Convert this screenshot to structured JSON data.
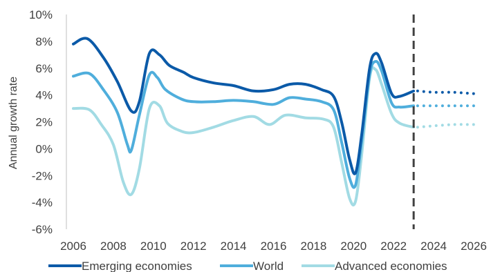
{
  "chart_data": {
    "type": "line",
    "title": "",
    "xlabel": "",
    "ylabel": "Annual growth rate",
    "xlim": [
      2006,
      2026
    ],
    "ylim": [
      -6,
      10
    ],
    "x_ticks": [
      2006,
      2008,
      2010,
      2012,
      2014,
      2016,
      2018,
      2020,
      2022,
      2024,
      2026
    ],
    "y_ticks": [
      -6,
      -4,
      -2,
      0,
      2,
      4,
      6,
      8,
      10
    ],
    "y_tick_labels": [
      "-6%",
      "-4%",
      "-2%",
      "0%",
      "2%",
      "4%",
      "6%",
      "8%",
      "10%"
    ],
    "grid": false,
    "legend_position": "bottom",
    "forecast_start": 2023,
    "forecast_marker": "vertical dashed line",
    "series": [
      {
        "name": "Emerging economies",
        "color": "#0b5aa8",
        "points": [
          [
            2006,
            7.8
          ],
          [
            2006.7,
            8.2
          ],
          [
            2007.5,
            6.8
          ],
          [
            2008.2,
            5.0
          ],
          [
            2008.9,
            2.8
          ],
          [
            2009.3,
            3.5
          ],
          [
            2009.8,
            7.1
          ],
          [
            2010.3,
            7.0
          ],
          [
            2010.8,
            6.2
          ],
          [
            2011.5,
            5.7
          ],
          [
            2012,
            5.3
          ],
          [
            2013,
            4.9
          ],
          [
            2014,
            4.7
          ],
          [
            2015,
            4.3
          ],
          [
            2016,
            4.4
          ],
          [
            2016.8,
            4.8
          ],
          [
            2017.6,
            4.8
          ],
          [
            2018.4,
            4.4
          ],
          [
            2019,
            3.9
          ],
          [
            2019.4,
            2.0
          ],
          [
            2019.8,
            -0.8
          ],
          [
            2020.1,
            -1.8
          ],
          [
            2020.4,
            1.0
          ],
          [
            2020.8,
            6.0
          ],
          [
            2021.1,
            7.1
          ],
          [
            2021.4,
            6.4
          ],
          [
            2021.9,
            4.1
          ],
          [
            2022.3,
            3.9
          ],
          [
            2023,
            4.3
          ]
        ],
        "forecast_points": [
          [
            2023.2,
            4.3
          ],
          [
            2024,
            4.2
          ],
          [
            2025,
            4.2
          ],
          [
            2026,
            4.1
          ]
        ]
      },
      {
        "name": "World",
        "color": "#4faedc",
        "points": [
          [
            2006,
            5.4
          ],
          [
            2006.8,
            5.6
          ],
          [
            2007.5,
            4.4
          ],
          [
            2008.2,
            2.7
          ],
          [
            2008.7,
            0.3
          ],
          [
            2008.9,
            -0.1
          ],
          [
            2009.3,
            2.5
          ],
          [
            2009.8,
            5.5
          ],
          [
            2010.2,
            5.3
          ],
          [
            2010.6,
            4.4
          ],
          [
            2011.4,
            3.7
          ],
          [
            2012,
            3.5
          ],
          [
            2013,
            3.5
          ],
          [
            2014,
            3.6
          ],
          [
            2015,
            3.5
          ],
          [
            2016,
            3.3
          ],
          [
            2016.8,
            3.8
          ],
          [
            2017.6,
            3.7
          ],
          [
            2018.4,
            3.5
          ],
          [
            2019,
            2.9
          ],
          [
            2019.4,
            0.5
          ],
          [
            2019.8,
            -2.2
          ],
          [
            2020.1,
            -2.7
          ],
          [
            2020.4,
            0.5
          ],
          [
            2020.8,
            5.5
          ],
          [
            2021.1,
            6.5
          ],
          [
            2021.4,
            5.8
          ],
          [
            2021.9,
            3.4
          ],
          [
            2022.3,
            3.1
          ],
          [
            2023,
            3.2
          ]
        ],
        "forecast_points": [
          [
            2023.2,
            3.2
          ],
          [
            2024,
            3.2
          ],
          [
            2025,
            3.2
          ],
          [
            2026,
            3.2
          ]
        ]
      },
      {
        "name": "Advanced economies",
        "color": "#a2dbe4",
        "points": [
          [
            2006,
            3.0
          ],
          [
            2006.8,
            2.9
          ],
          [
            2007.4,
            1.8
          ],
          [
            2008,
            0.3
          ],
          [
            2008.5,
            -2.5
          ],
          [
            2008.9,
            -3.4
          ],
          [
            2009.3,
            -1.5
          ],
          [
            2009.8,
            3.0
          ],
          [
            2010.3,
            3.2
          ],
          [
            2010.7,
            1.9
          ],
          [
            2011.4,
            1.3
          ],
          [
            2012,
            1.2
          ],
          [
            2013,
            1.6
          ],
          [
            2014,
            2.1
          ],
          [
            2015,
            2.4
          ],
          [
            2015.8,
            1.8
          ],
          [
            2016.6,
            2.5
          ],
          [
            2017.6,
            2.3
          ],
          [
            2018.5,
            2.2
          ],
          [
            2019,
            1.6
          ],
          [
            2019.4,
            -1.0
          ],
          [
            2019.8,
            -3.7
          ],
          [
            2020.1,
            -3.9
          ],
          [
            2020.4,
            -0.5
          ],
          [
            2020.8,
            5.3
          ],
          [
            2021.1,
            5.9
          ],
          [
            2021.4,
            4.8
          ],
          [
            2021.9,
            2.6
          ],
          [
            2022.3,
            1.9
          ],
          [
            2023,
            1.6
          ]
        ],
        "forecast_points": [
          [
            2023.2,
            1.6
          ],
          [
            2024,
            1.7
          ],
          [
            2025,
            1.8
          ],
          [
            2026,
            1.8
          ]
        ]
      }
    ]
  }
}
